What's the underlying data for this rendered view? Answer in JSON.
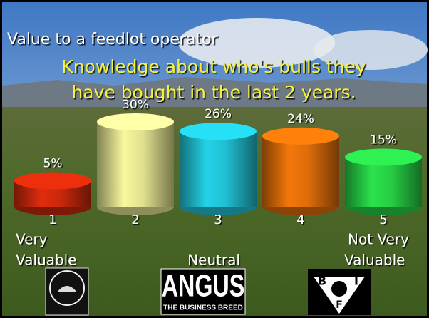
{
  "chart_data": {
    "type": "bar",
    "title": "Value to a feedlot operator",
    "subtitle": [
      "Knowledge about who's bulls they",
      "have bought in the last 2 years."
    ],
    "categories": [
      "1",
      "2",
      "3",
      "4",
      "5"
    ],
    "values": [
      5,
      30,
      26,
      24,
      15
    ],
    "value_labels": [
      "5%",
      "30%",
      "26%",
      "24%",
      "15%"
    ],
    "colors": [
      "#d42a0c",
      "#ecec96",
      "#22c9dc",
      "#e8720a",
      "#28d848"
    ],
    "annotations": [
      [
        "Very",
        "Valuable"
      ],
      [
        "Neutral"
      ],
      [
        "Not Very",
        "Valuable"
      ]
    ],
    "logos": {
      "angus": [
        "ANGUS",
        "THE BUSINESS BREED"
      ],
      "bif": [
        "B",
        "I",
        "F"
      ]
    }
  }
}
